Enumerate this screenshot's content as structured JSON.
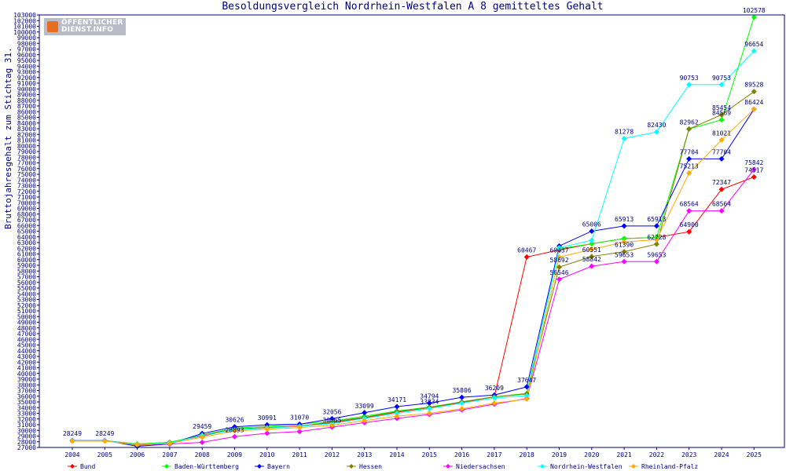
{
  "chart_data": {
    "type": "line",
    "title": "Besoldungsvergleich Nordrhein-Westfalen A 8 gemitteltes Gehalt",
    "ylabel": "Bruttojahresgehalt zum Stichtag 31.10.",
    "xlabel": "",
    "ylim": [
      27000,
      103000
    ],
    "ytick_step": 1000,
    "grid": false,
    "legend_position": "bottom",
    "categories": [
      "2004",
      "2005",
      "2006",
      "2007",
      "2008",
      "2009",
      "2010",
      "2011",
      "2012",
      "2013",
      "2014",
      "2015",
      "2016",
      "2017",
      "2018",
      "2019",
      "2020",
      "2021",
      "2022",
      "2023",
      "2024",
      "2025"
    ],
    "series": [
      {
        "name": "Bund",
        "color": "#ff0000",
        "values": [
          28200,
          28200,
          27600,
          27900,
          29000,
          30200,
          30500,
          30800,
          31300,
          32200,
          33200,
          34000,
          34900,
          35900,
          60467,
          61700,
          62800,
          63700,
          63900,
          64900,
          72347,
          74517
        ],
        "labels": [
          null,
          null,
          null,
          null,
          null,
          null,
          null,
          null,
          null,
          null,
          null,
          null,
          null,
          null,
          "60467",
          null,
          null,
          null,
          null,
          "64900",
          "72347",
          "74517"
        ]
      },
      {
        "name": "Baden-Württemberg",
        "color": "#00ff00",
        "values": [
          28200,
          28200,
          27600,
          27900,
          29200,
          30400,
          30700,
          31100,
          31600,
          32500,
          33400,
          34100,
          35000,
          35900,
          36500,
          61900,
          62800,
          63700,
          63900,
          82962,
          84569,
          102578
        ],
        "labels": [
          null,
          null,
          null,
          null,
          null,
          null,
          null,
          null,
          null,
          null,
          null,
          null,
          null,
          null,
          null,
          null,
          null,
          null,
          null,
          "82962",
          "84569",
          "102578"
        ]
      },
      {
        "name": "Bayern",
        "color": "#0000ff",
        "values": [
          28249,
          28249,
          27200,
          27600,
          29459,
          30626,
          30991,
          31070,
          32056,
          33099,
          34171,
          34794,
          35806,
          36209,
          37647,
          62400,
          65006,
          65913,
          65913,
          77704,
          77704,
          86424
        ],
        "labels": [
          "28249",
          "28249",
          null,
          null,
          "29459",
          "30626",
          "30991",
          "31070",
          "32056",
          "33099",
          "34171",
          "34794",
          "35806",
          "36209",
          "37647",
          null,
          "65006",
          "65913",
          "65913",
          "77704",
          "77704",
          "86424"
        ]
      },
      {
        "name": "Hessen",
        "color": "#808000",
        "values": [
          28200,
          28200,
          27400,
          27700,
          29200,
          30200,
          30500,
          30700,
          31500,
          32300,
          33300,
          34000,
          35000,
          35900,
          36400,
          58692,
          60551,
          61390,
          62728,
          82962,
          85454,
          89528
        ],
        "labels": [
          null,
          null,
          null,
          null,
          null,
          null,
          null,
          null,
          null,
          null,
          null,
          null,
          null,
          null,
          null,
          "58692",
          "60551",
          "61390",
          "62728",
          null,
          "85454",
          "89528"
        ]
      },
      {
        "name": "Niedersachsen",
        "color": "#ff00ff",
        "values": [
          28200,
          28200,
          27500,
          27600,
          27900,
          28893,
          29500,
          29800,
          30565,
          31365,
          32100,
          32800,
          33600,
          34600,
          35600,
          56546,
          58842,
          59653,
          59653,
          68564,
          68564,
          75842
        ],
        "labels": [
          null,
          null,
          null,
          null,
          null,
          "28893",
          null,
          null,
          "30565",
          null,
          null,
          null,
          null,
          null,
          null,
          "56546",
          "58842",
          "59653",
          "59653",
          "68564",
          "68564",
          "75842"
        ]
      },
      {
        "name": "Nordrhein-Westfalen",
        "color": "#00ffff",
        "values": [
          28200,
          28200,
          27500,
          27800,
          29100,
          30100,
          30400,
          30700,
          31200,
          32100,
          33000,
          33834,
          34800,
          35700,
          36100,
          62100,
          63400,
          81278,
          82430,
          90753,
          90753,
          96654
        ],
        "labels": [
          null,
          null,
          null,
          null,
          null,
          null,
          null,
          null,
          null,
          null,
          null,
          "33834",
          null,
          null,
          null,
          null,
          null,
          "81278",
          "82430",
          "90753",
          "90753",
          "96654"
        ]
      },
      {
        "name": "Rheinland-Pfalz",
        "color": "#ffaa00",
        "values": [
          28100,
          28100,
          27500,
          27700,
          28800,
          29900,
          30200,
          30500,
          30900,
          31700,
          32500,
          33000,
          33800,
          34800,
          35500,
          60437,
          61800,
          63100,
          63500,
          75213,
          81021,
          86424
        ],
        "labels": [
          null,
          null,
          null,
          null,
          null,
          null,
          null,
          null,
          null,
          null,
          null,
          null,
          null,
          null,
          null,
          "60437",
          null,
          null,
          null,
          "75213",
          "81021",
          null
        ]
      }
    ]
  },
  "logo_text": [
    "ÖFFENTLICHER",
    "DIENST.INFO"
  ],
  "colors": {
    "axis": "#000080",
    "background": "#ffffff"
  }
}
